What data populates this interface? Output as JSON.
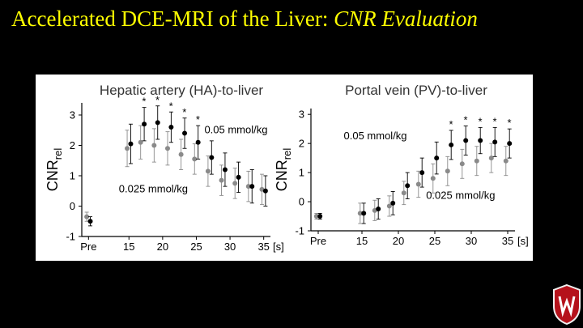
{
  "slide": {
    "title_main": "Accelerated DCE-MRI of the Liver: ",
    "title_italic": "CNR Evaluation"
  },
  "colors": {
    "title": "#ffff00",
    "dose_high": "#000000",
    "dose_low": "#8a8a8a",
    "crest": "#b5121b"
  },
  "chart_data": [
    {
      "type": "scatter",
      "title": "Hepatic artery (HA)-to-liver",
      "xlabel": "[s]",
      "ylabel": "CNRrel",
      "ylabel_main": "CNR",
      "ylabel_sub": "rel",
      "xlim": [
        8,
        36
      ],
      "ylim": [
        -1,
        3.4
      ],
      "xticks": [
        "Pre",
        "15",
        "20",
        "25",
        "30",
        "35"
      ],
      "xtick_values": [
        9,
        15,
        20,
        25,
        30,
        35
      ],
      "yticks": [
        "-1",
        "0",
        "1",
        "2",
        "3"
      ],
      "ytick_values": [
        -1,
        0,
        1,
        2,
        3
      ],
      "series": [
        {
          "name": "0.05 mmol/kg",
          "color": "#000000",
          "x": [
            9,
            15,
            17,
            19,
            21,
            23,
            25,
            27,
            29,
            31,
            33,
            35
          ],
          "y": [
            -0.5,
            2.05,
            2.7,
            2.75,
            2.6,
            2.4,
            2.1,
            1.6,
            1.2,
            0.95,
            0.65,
            0.5
          ],
          "err": [
            0.15,
            0.65,
            0.55,
            0.55,
            0.5,
            0.5,
            0.55,
            0.55,
            0.55,
            0.5,
            0.55,
            0.5
          ]
        },
        {
          "name": "0.025 mmol/kg",
          "color": "#8a8a8a",
          "x": [
            9,
            15,
            17,
            19,
            21,
            23,
            25,
            27,
            29,
            31,
            33,
            35
          ],
          "y": [
            -0.35,
            1.9,
            2.1,
            2.0,
            1.9,
            1.7,
            1.55,
            1.15,
            0.85,
            0.75,
            0.65,
            0.55
          ],
          "err": [
            0.15,
            0.6,
            0.55,
            0.55,
            0.55,
            0.5,
            0.5,
            0.5,
            0.5,
            0.5,
            0.5,
            0.5
          ]
        }
      ],
      "significance_x": [
        17,
        19,
        21,
        23,
        25
      ],
      "significance_mark": "*",
      "legend_labels": [
        {
          "text": "0.05 mmol/kg",
          "anchor_x": 26.2,
          "anchor_y": 2.4
        },
        {
          "text": "0.025 mmol/kg",
          "anchor_x": 13.5,
          "anchor_y": 0.45
        }
      ]
    },
    {
      "type": "scatter",
      "title": "Portal vein (PV)-to-liver",
      "xlabel": "[s]",
      "ylabel": "CNRrel",
      "ylabel_main": "CNR",
      "ylabel_sub": "rel",
      "xlim": [
        8,
        36
      ],
      "ylim": [
        -1,
        3.2
      ],
      "xticks": [
        "Pre",
        "15",
        "20",
        "25",
        "30",
        "35"
      ],
      "xtick_values": [
        9,
        15,
        20,
        25,
        30,
        35
      ],
      "yticks": [
        "-1",
        "0",
        "1",
        "2",
        "3"
      ],
      "ytick_values": [
        -1,
        0,
        1,
        2,
        3
      ],
      "series": [
        {
          "name": "0.05 mmol/kg",
          "color": "#000000",
          "x": [
            9,
            15,
            17,
            19,
            21,
            23,
            25,
            27,
            29,
            31,
            33,
            35
          ],
          "y": [
            -0.5,
            -0.4,
            -0.25,
            -0.05,
            0.55,
            1.0,
            1.5,
            1.95,
            2.1,
            2.1,
            2.05,
            2.0
          ],
          "err": [
            0.1,
            0.35,
            0.35,
            0.4,
            0.45,
            0.5,
            0.55,
            0.5,
            0.5,
            0.45,
            0.5,
            0.5
          ]
        },
        {
          "name": "0.025 mmol/kg",
          "color": "#8a8a8a",
          "x": [
            9,
            15,
            17,
            19,
            21,
            23,
            25,
            27,
            29,
            31,
            33,
            35
          ],
          "y": [
            -0.5,
            -0.4,
            -0.3,
            -0.15,
            0.3,
            0.6,
            0.8,
            1.05,
            1.3,
            1.4,
            1.5,
            1.4
          ],
          "err": [
            0.1,
            0.35,
            0.35,
            0.35,
            0.4,
            0.45,
            0.5,
            0.5,
            0.5,
            0.5,
            0.5,
            0.5
          ]
        }
      ],
      "significance_x": [
        27,
        29,
        31,
        33,
        35
      ],
      "significance_mark": "*",
      "legend_labels": [
        {
          "text": "0.05 mmol/kg",
          "anchor_x": 12.5,
          "anchor_y": 2.15
        },
        {
          "text": "0.025 mmol/kg",
          "anchor_x": 23.8,
          "anchor_y": 0.1
        }
      ]
    }
  ]
}
